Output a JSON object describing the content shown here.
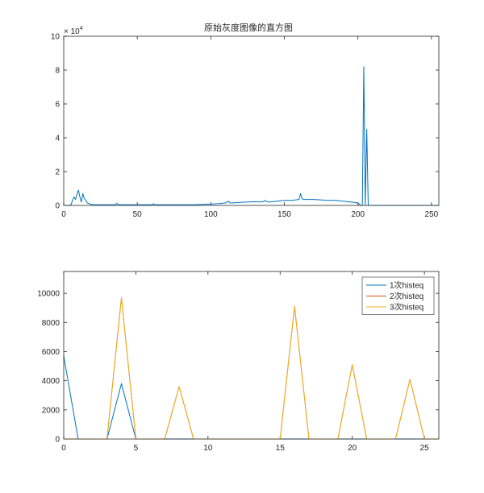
{
  "chart_data": [
    {
      "type": "line",
      "title": "原始灰度图像的直方图",
      "xlabel": "",
      "ylabel": "",
      "xlim": [
        0,
        255
      ],
      "ylim": [
        0,
        100000
      ],
      "y_exponent_label": "× 10",
      "y_exponent_power": "4",
      "xticks": [
        0,
        50,
        100,
        150,
        200,
        250
      ],
      "xtick_labels": [
        "0",
        "50",
        "100",
        "150",
        "200",
        "250"
      ],
      "yticks": [
        0,
        20000,
        40000,
        60000,
        80000,
        100000
      ],
      "ytick_labels": [
        "0",
        "2",
        "4",
        "6",
        "8",
        "10"
      ],
      "grid": false,
      "series": [
        {
          "color": "#0072bd",
          "x": [
            0,
            4,
            5,
            6,
            7,
            8,
            9,
            10,
            11,
            12,
            13,
            14,
            15,
            16,
            18,
            20,
            25,
            30,
            35,
            36,
            37,
            40,
            50,
            60,
            61,
            62,
            70,
            80,
            90,
            100,
            105,
            110,
            112,
            113,
            115,
            120,
            125,
            130,
            135,
            137,
            138,
            140,
            145,
            150,
            155,
            160,
            161,
            162,
            163,
            164,
            165,
            170,
            180,
            185,
            190,
            195,
            200,
            202,
            203,
            204,
            205,
            206,
            207,
            210,
            220,
            230,
            240,
            250,
            255
          ],
          "y": [
            0,
            0,
            500,
            3000,
            5000,
            3500,
            6500,
            9000,
            5000,
            2000,
            7000,
            4000,
            3000,
            1500,
            800,
            500,
            400,
            400,
            400,
            1200,
            400,
            400,
            400,
            400,
            1000,
            400,
            400,
            400,
            500,
            800,
            1000,
            1500,
            2500,
            1500,
            1500,
            1800,
            2000,
            2200,
            2000,
            3000,
            2200,
            2000,
            2500,
            3000,
            3000,
            3500,
            7000,
            4000,
            3500,
            3500,
            3500,
            3500,
            3000,
            3000,
            2500,
            2000,
            1500,
            0,
            0,
            82000,
            0,
            45000,
            0,
            0,
            0,
            0,
            0,
            0,
            0
          ]
        }
      ]
    },
    {
      "type": "line",
      "title": "",
      "xlabel": "",
      "ylabel": "",
      "xlim": [
        0,
        26
      ],
      "ylim": [
        0,
        11500
      ],
      "xticks": [
        0,
        5,
        10,
        15,
        20,
        25
      ],
      "xtick_labels": [
        "0",
        "5",
        "10",
        "15",
        "20",
        "25"
      ],
      "yticks": [
        0,
        2000,
        4000,
        6000,
        8000,
        10000
      ],
      "ytick_labels": [
        "0",
        "2000",
        "4000",
        "6000",
        "8000",
        "10000"
      ],
      "grid": false,
      "legend_position": "top-right",
      "series": [
        {
          "name": "1次histeq",
          "color": "#0072bd",
          "x": [
            0,
            1,
            3,
            4,
            5,
            26
          ],
          "y": [
            5700,
            0,
            0,
            3800,
            0,
            0
          ]
        },
        {
          "name": "2次histeq",
          "color": "#d95319",
          "x": [
            0,
            3,
            4,
            5,
            7,
            8,
            9,
            15,
            16,
            17,
            19,
            20,
            21,
            23,
            24,
            25,
            26
          ],
          "y": [
            0,
            0,
            9700,
            0,
            0,
            3600,
            0,
            0,
            9100,
            0,
            0,
            5100,
            0,
            0,
            4100,
            0,
            0
          ]
        },
        {
          "name": "3次histeq",
          "color": "#edb120",
          "x": [
            0,
            3,
            4,
            5,
            7,
            8,
            9,
            15,
            16,
            17,
            19,
            20,
            21,
            23,
            24,
            25,
            26
          ],
          "y": [
            0,
            0,
            9700,
            0,
            0,
            3600,
            0,
            0,
            9100,
            0,
            0,
            5100,
            0,
            0,
            4100,
            0,
            0
          ]
        }
      ]
    }
  ]
}
